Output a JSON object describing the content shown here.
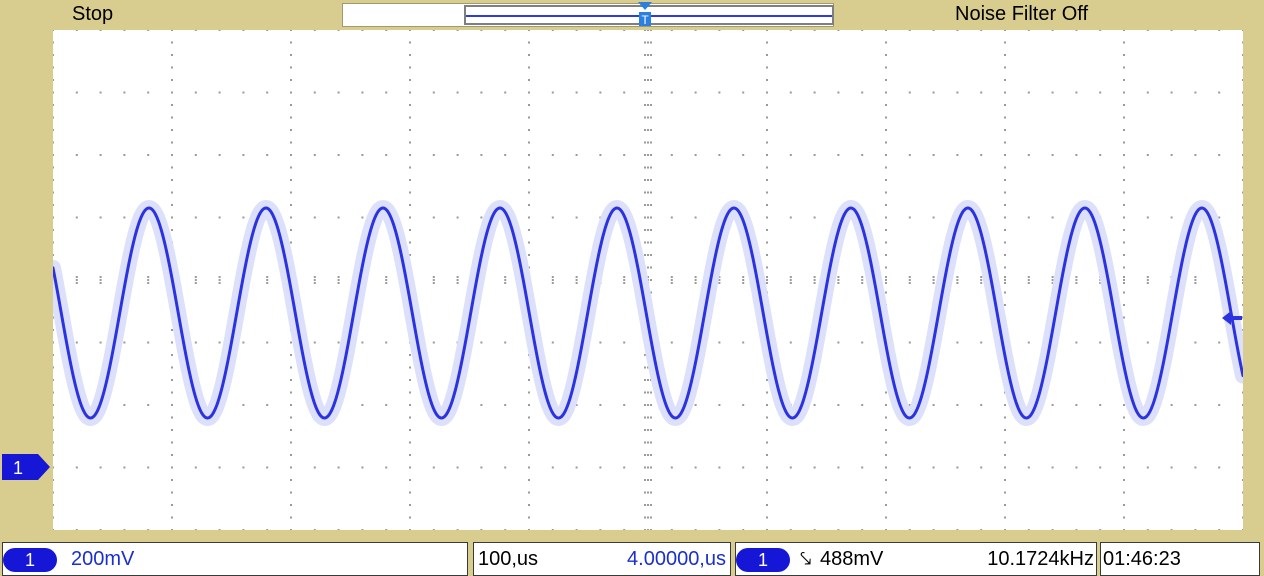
{
  "top_bar": {
    "run_status": "Stop",
    "noise_filter": "Noise Filter Off"
  },
  "channel": {
    "number": "1",
    "color": "#1a2fd0",
    "scale": "200mV"
  },
  "timebase": {
    "scale": "100,us",
    "delay": "4.00000,us"
  },
  "trigger": {
    "source": "1",
    "slope_symbol": "⤥",
    "level": "488mV"
  },
  "measurement": {
    "frequency": "10.1724kHz"
  },
  "clock": {
    "time": "01:46:23"
  },
  "waveform": {
    "type": "sine",
    "cycles_on_screen": 10.1724,
    "color": "#2b33e0"
  },
  "colors": {
    "bezel": "#d8cc8e",
    "screen": "#ffffff",
    "grid": "#9a9a9a",
    "trace": "#2b33e0",
    "glow": "#dde0fa"
  }
}
